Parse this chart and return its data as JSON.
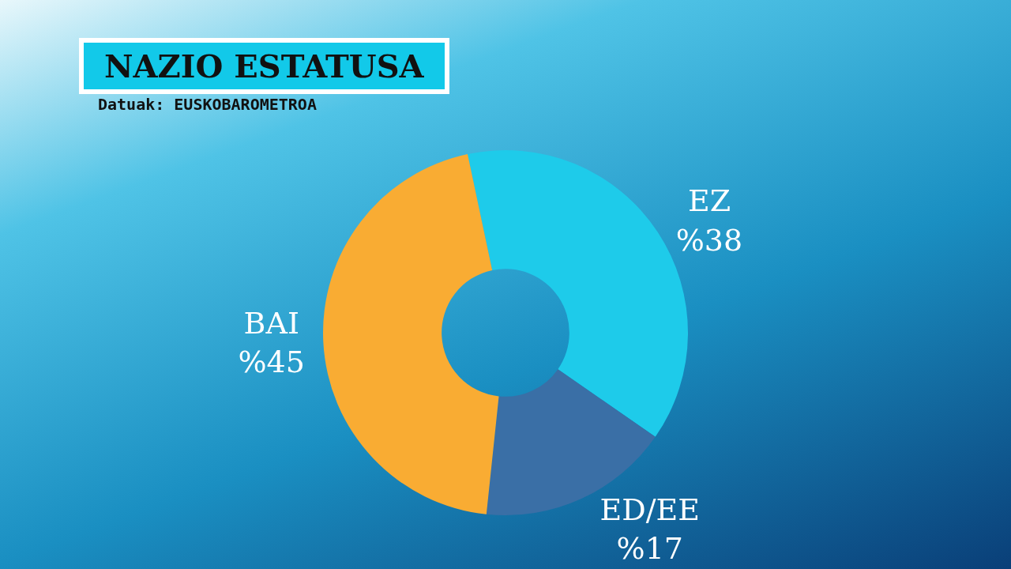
{
  "chart_data": {
    "type": "donut",
    "title": "NAZIO ESTATUSA",
    "subtitle": "Datuak: EUSKOBAROMETROA",
    "categories": [
      "EZ",
      "ED/EE",
      "BAI"
    ],
    "values": [
      38,
      17,
      45
    ],
    "value_labels": [
      "%38",
      "%17",
      "%45"
    ],
    "colors": [
      "#1ecbea",
      "#3a6fa6",
      "#f9ac33"
    ],
    "legend": false
  }
}
